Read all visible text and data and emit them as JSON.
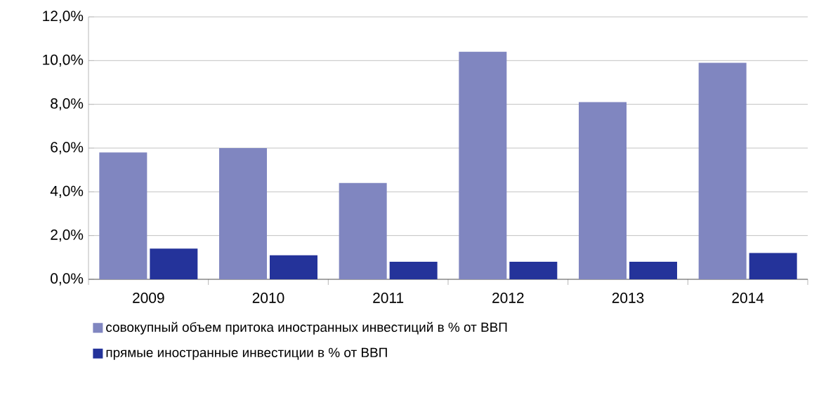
{
  "chart_data": {
    "type": "bar",
    "categories": [
      "2009",
      "2010",
      "2011",
      "2012",
      "2013",
      "2014"
    ],
    "series": [
      {
        "name": "совокупный объем притока иностранных инвестиций в % от ВВП",
        "color": "#8086c0",
        "values": [
          5.8,
          6.0,
          4.4,
          10.4,
          8.1,
          9.9
        ]
      },
      {
        "name": "прямые иностранные инвестиции в % от ВВП",
        "color": "#24339a",
        "values": [
          1.4,
          1.1,
          0.8,
          0.8,
          0.8,
          1.2
        ]
      }
    ],
    "ylim": [
      0,
      12
    ],
    "yticks": [
      {
        "value": 0,
        "label": "0,0%"
      },
      {
        "value": 2,
        "label": "2,0%"
      },
      {
        "value": 4,
        "label": "4,0%"
      },
      {
        "value": 6,
        "label": "6,0%"
      },
      {
        "value": 8,
        "label": "8,0%"
      },
      {
        "value": 10,
        "label": "10,0%"
      },
      {
        "value": 12,
        "label": "12,0%"
      }
    ],
    "grid": "y",
    "legend": "bottom"
  }
}
